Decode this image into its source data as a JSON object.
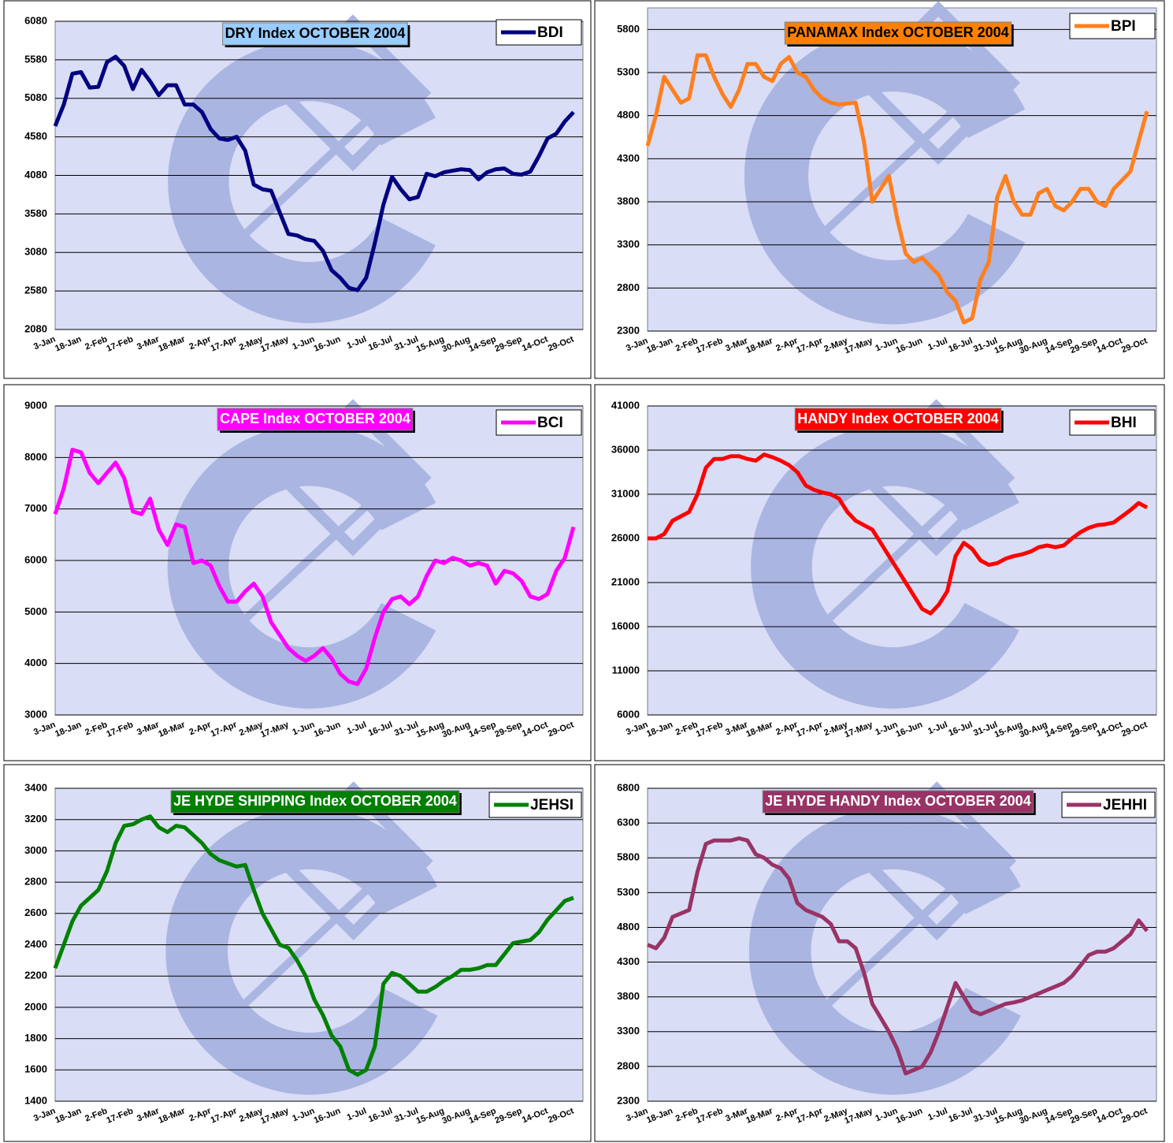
{
  "chart_data": [
    {
      "type": "line",
      "title": "DRY Index  OCTOBER 2004",
      "title_background": "#99ccff",
      "categories": [
        "3-Jan",
        null,
        null,
        "18-Jan",
        null,
        null,
        "2-Feb",
        null,
        null,
        "17-Feb",
        null,
        null,
        "3-Mar",
        null,
        null,
        "18-Mar",
        null,
        null,
        "2-Apr",
        null,
        null,
        "17-Apr",
        null,
        null,
        "2-May",
        null,
        null,
        "17-May",
        null,
        null,
        "1-Jun",
        null,
        null,
        "16-Jun",
        null,
        null,
        "1-Jul",
        null,
        null,
        "16-Jul",
        null,
        null,
        "31-Jul",
        null,
        null,
        "15-Aug",
        null,
        null,
        "30-Aug",
        null,
        null,
        "14-Sep",
        null,
        null,
        "29-Sep",
        null,
        null,
        "14-Oct",
        null,
        null,
        "29-Oct"
      ],
      "series": [
        {
          "name": "BDI",
          "color": "#000080",
          "values": [
            4720,
            5000,
            5400,
            5420,
            5220,
            5230,
            5550,
            5620,
            5500,
            5200,
            5450,
            5300,
            5120,
            5250,
            5250,
            5000,
            5000,
            4900,
            4680,
            4560,
            4540,
            4580,
            4400,
            3960,
            3900,
            3880,
            3600,
            3320,
            3300,
            3250,
            3230,
            3100,
            2850,
            2750,
            2620,
            2590,
            2750,
            3200,
            3700,
            4060,
            3900,
            3770,
            3800,
            4100,
            4070,
            4120,
            4140,
            4160,
            4150,
            4030,
            4120,
            4160,
            4170,
            4100,
            4090,
            4130,
            4330,
            4560,
            4620,
            4780,
            4900
          ]
        }
      ],
      "ylim": [
        2080,
        6080
      ],
      "yticks": [
        2080,
        2580,
        3080,
        3580,
        4080,
        4580,
        5080,
        5580,
        6080
      ],
      "grid": true
    },
    {
      "type": "line",
      "title": "PANAMAX Index  OCTOBER 2004",
      "title_background": "#ff8000",
      "categories": [
        "3-Jan",
        null,
        null,
        "18-Jan",
        null,
        null,
        "2-Feb",
        null,
        null,
        "17-Feb",
        null,
        null,
        "3-Mar",
        null,
        null,
        "18-Mar",
        null,
        null,
        "2-Apr",
        null,
        null,
        "17-Apr",
        null,
        null,
        "2-May",
        null,
        null,
        "17-May",
        null,
        null,
        "1-Jun",
        null,
        null,
        "16-Jun",
        null,
        null,
        "1-Jul",
        null,
        null,
        "16-Jul",
        null,
        null,
        "31-Jul",
        null,
        null,
        "15-Aug",
        null,
        null,
        "30-Aug",
        null,
        null,
        "14-Sep",
        null,
        null,
        "29-Sep",
        null,
        null,
        "14-Oct",
        null,
        null,
        "29-Oct"
      ],
      "series": [
        {
          "name": "BPI",
          "color": "#ff7f1e",
          "values": [
            4450,
            4800,
            5250,
            5100,
            4950,
            5000,
            5500,
            5500,
            5250,
            5050,
            4900,
            5100,
            5400,
            5400,
            5250,
            5200,
            5400,
            5480,
            5300,
            5250,
            5100,
            5000,
            4950,
            4930,
            4940,
            4950,
            4500,
            3800,
            3950,
            4100,
            3600,
            3200,
            3100,
            3150,
            3050,
            2950,
            2750,
            2650,
            2400,
            2450,
            2900,
            3100,
            3850,
            4100,
            3800,
            3650,
            3650,
            3900,
            3950,
            3750,
            3700,
            3800,
            3950,
            3950,
            3800,
            3750,
            3950,
            4050,
            4150,
            4500,
            4850
          ]
        }
      ],
      "ylim": [
        2300,
        6050
      ],
      "yticks": [
        2300,
        2800,
        3300,
        3800,
        4300,
        4800,
        5300,
        5800
      ],
      "grid": true
    },
    {
      "type": "line",
      "title": "CAPE Index  OCTOBER 2004",
      "title_background": "#ff00ff",
      "categories": [
        "3-Jan",
        null,
        null,
        "18-Jan",
        null,
        null,
        "2-Feb",
        null,
        null,
        "17-Feb",
        null,
        null,
        "3-Mar",
        null,
        null,
        "18-Mar",
        null,
        null,
        "2-Apr",
        null,
        null,
        "17-Apr",
        null,
        null,
        "2-May",
        null,
        null,
        "17-May",
        null,
        null,
        "1-Jun",
        null,
        null,
        "16-Jun",
        null,
        null,
        "1-Jul",
        null,
        null,
        "16-Jul",
        null,
        null,
        "31-Jul",
        null,
        null,
        "15-Aug",
        null,
        null,
        "30-Aug",
        null,
        null,
        "14-Sep",
        null,
        null,
        "29-Sep",
        null,
        null,
        "14-Oct",
        null,
        null,
        "29-Oct"
      ],
      "series": [
        {
          "name": "BCI",
          "color": "#ff00ff",
          "values": [
            6900,
            7400,
            8150,
            8100,
            7700,
            7500,
            7700,
            7900,
            7600,
            6950,
            6900,
            7200,
            6600,
            6300,
            6700,
            6650,
            5950,
            6000,
            5900,
            5500,
            5200,
            5200,
            5400,
            5550,
            5300,
            4800,
            4550,
            4300,
            4150,
            4050,
            4150,
            4300,
            4100,
            3800,
            3650,
            3600,
            3900,
            4500,
            5000,
            5250,
            5300,
            5150,
            5300,
            5700,
            6000,
            5950,
            6050,
            6000,
            5900,
            5950,
            5900,
            5550,
            5800,
            5750,
            5600,
            5300,
            5250,
            5350,
            5800,
            6050,
            6650
          ]
        }
      ],
      "ylim": [
        3000,
        9000
      ],
      "yticks": [
        3000,
        4000,
        5000,
        6000,
        7000,
        8000,
        9000
      ],
      "grid": true
    },
    {
      "type": "line",
      "title": "HANDY Index  OCTOBER 2004",
      "title_background": "#ff0000",
      "categories": [
        "3-Jan",
        null,
        null,
        "18-Jan",
        null,
        null,
        "2-Feb",
        null,
        null,
        "17-Feb",
        null,
        null,
        "3-Mar",
        null,
        null,
        "18-Mar",
        null,
        null,
        "2-Apr",
        null,
        null,
        "17-Apr",
        null,
        null,
        "2-May",
        null,
        null,
        "17-May",
        null,
        null,
        "1-Jun",
        null,
        null,
        "16-Jun",
        null,
        null,
        "1-Jul",
        null,
        null,
        "16-Jul",
        null,
        null,
        "31-Jul",
        null,
        null,
        "15-Aug",
        null,
        null,
        "30-Aug",
        null,
        null,
        "14-Sep",
        null,
        null,
        "29-Sep",
        null,
        null,
        "14-Oct",
        null,
        null,
        "29-Oct"
      ],
      "series": [
        {
          "name": "BHI",
          "color": "#ff0000",
          "values": [
            26000,
            26000,
            26500,
            28000,
            28500,
            29000,
            31000,
            34000,
            35000,
            35000,
            35300,
            35300,
            35000,
            34800,
            35500,
            35200,
            34800,
            34300,
            33500,
            32000,
            31500,
            31200,
            31000,
            30500,
            29000,
            28000,
            27500,
            27000,
            25500,
            24000,
            22500,
            21000,
            19500,
            18000,
            17500,
            18500,
            20000,
            24000,
            25500,
            24800,
            23500,
            23000,
            23200,
            23700,
            24000,
            24200,
            24500,
            25000,
            25200,
            25000,
            25200,
            26000,
            26700,
            27200,
            27500,
            27600,
            27800,
            28500,
            29200,
            30000,
            29500
          ]
        }
      ],
      "ylim": [
        6000,
        41000
      ],
      "yticks": [
        6000,
        11000,
        16000,
        21000,
        26000,
        31000,
        36000,
        41000
      ],
      "grid": true
    },
    {
      "type": "line",
      "title": "JE HYDE SHIPPING Index  OCTOBER 2004",
      "title_background": "#008000",
      "categories": [
        "3-Jan",
        null,
        null,
        "18-Jan",
        null,
        null,
        "2-Feb",
        null,
        null,
        "17-Feb",
        null,
        null,
        "3-Mar",
        null,
        null,
        "18-Mar",
        null,
        null,
        "2-Apr",
        null,
        null,
        "17-Apr",
        null,
        null,
        "2-May",
        null,
        null,
        "17-May",
        null,
        null,
        "1-Jun",
        null,
        null,
        "16-Jun",
        null,
        null,
        "1-Jul",
        null,
        null,
        "16-Jul",
        null,
        null,
        "31-Jul",
        null,
        null,
        "15-Aug",
        null,
        null,
        "30-Aug",
        null,
        null,
        "14-Sep",
        null,
        null,
        "29-Sep",
        null,
        null,
        "14-Oct",
        null,
        null,
        "29-Oct"
      ],
      "series": [
        {
          "name": "JEHSI",
          "color": "#008000",
          "values": [
            2250,
            2400,
            2550,
            2650,
            2700,
            2750,
            2870,
            3050,
            3160,
            3170,
            3200,
            3220,
            3150,
            3120,
            3160,
            3150,
            3100,
            3050,
            2980,
            2940,
            2920,
            2900,
            2910,
            2750,
            2600,
            2500,
            2400,
            2380,
            2300,
            2200,
            2050,
            1950,
            1820,
            1750,
            1600,
            1570,
            1600,
            1750,
            2150,
            2220,
            2200,
            2150,
            2100,
            2100,
            2130,
            2170,
            2200,
            2240,
            2240,
            2250,
            2270,
            2270,
            2340,
            2410,
            2420,
            2430,
            2480,
            2560,
            2620,
            2680,
            2700
          ]
        }
      ],
      "ylim": [
        1400,
        3400
      ],
      "yticks": [
        1400,
        1600,
        1800,
        2000,
        2200,
        2400,
        2600,
        2800,
        3000,
        3200,
        3400
      ],
      "grid": true
    },
    {
      "type": "line",
      "title": "JE HYDE HANDY Index OCTOBER 2004",
      "title_background": "#993366",
      "categories": [
        "3-Jan",
        null,
        null,
        "18-Jan",
        null,
        null,
        "2-Feb",
        null,
        null,
        "17-Feb",
        null,
        null,
        "3-Mar",
        null,
        null,
        "18-Mar",
        null,
        null,
        "2-Apr",
        null,
        null,
        "17-Apr",
        null,
        null,
        "2-May",
        null,
        null,
        "17-May",
        null,
        null,
        "1-Jun",
        null,
        null,
        "16-Jun",
        null,
        null,
        "1-Jul",
        null,
        null,
        "16-Jul",
        null,
        null,
        "31-Jul",
        null,
        null,
        "15-Aug",
        null,
        null,
        "30-Aug",
        null,
        null,
        "14-Sep",
        null,
        null,
        "29-Sep",
        null,
        null,
        "14-Oct",
        null,
        null,
        "29-Oct"
      ],
      "series": [
        {
          "name": "JEHHI",
          "color": "#993366",
          "values": [
            4550,
            4500,
            4650,
            4950,
            5000,
            5050,
            5600,
            6000,
            6050,
            6050,
            6050,
            6080,
            6050,
            5850,
            5800,
            5700,
            5650,
            5500,
            5150,
            5050,
            5000,
            4950,
            4850,
            4600,
            4600,
            4500,
            4150,
            3700,
            3500,
            3300,
            3050,
            2700,
            2750,
            2800,
            3000,
            3300,
            3650,
            4000,
            3800,
            3600,
            3550,
            3600,
            3650,
            3700,
            3720,
            3750,
            3800,
            3850,
            3900,
            3950,
            4000,
            4100,
            4250,
            4400,
            4450,
            4450,
            4500,
            4600,
            4700,
            4900,
            4750
          ]
        }
      ],
      "ylim": [
        2300,
        6800
      ],
      "yticks": [
        2300,
        2800,
        3300,
        3800,
        4300,
        4800,
        5300,
        5800,
        6300,
        6800
      ],
      "grid": true
    }
  ]
}
